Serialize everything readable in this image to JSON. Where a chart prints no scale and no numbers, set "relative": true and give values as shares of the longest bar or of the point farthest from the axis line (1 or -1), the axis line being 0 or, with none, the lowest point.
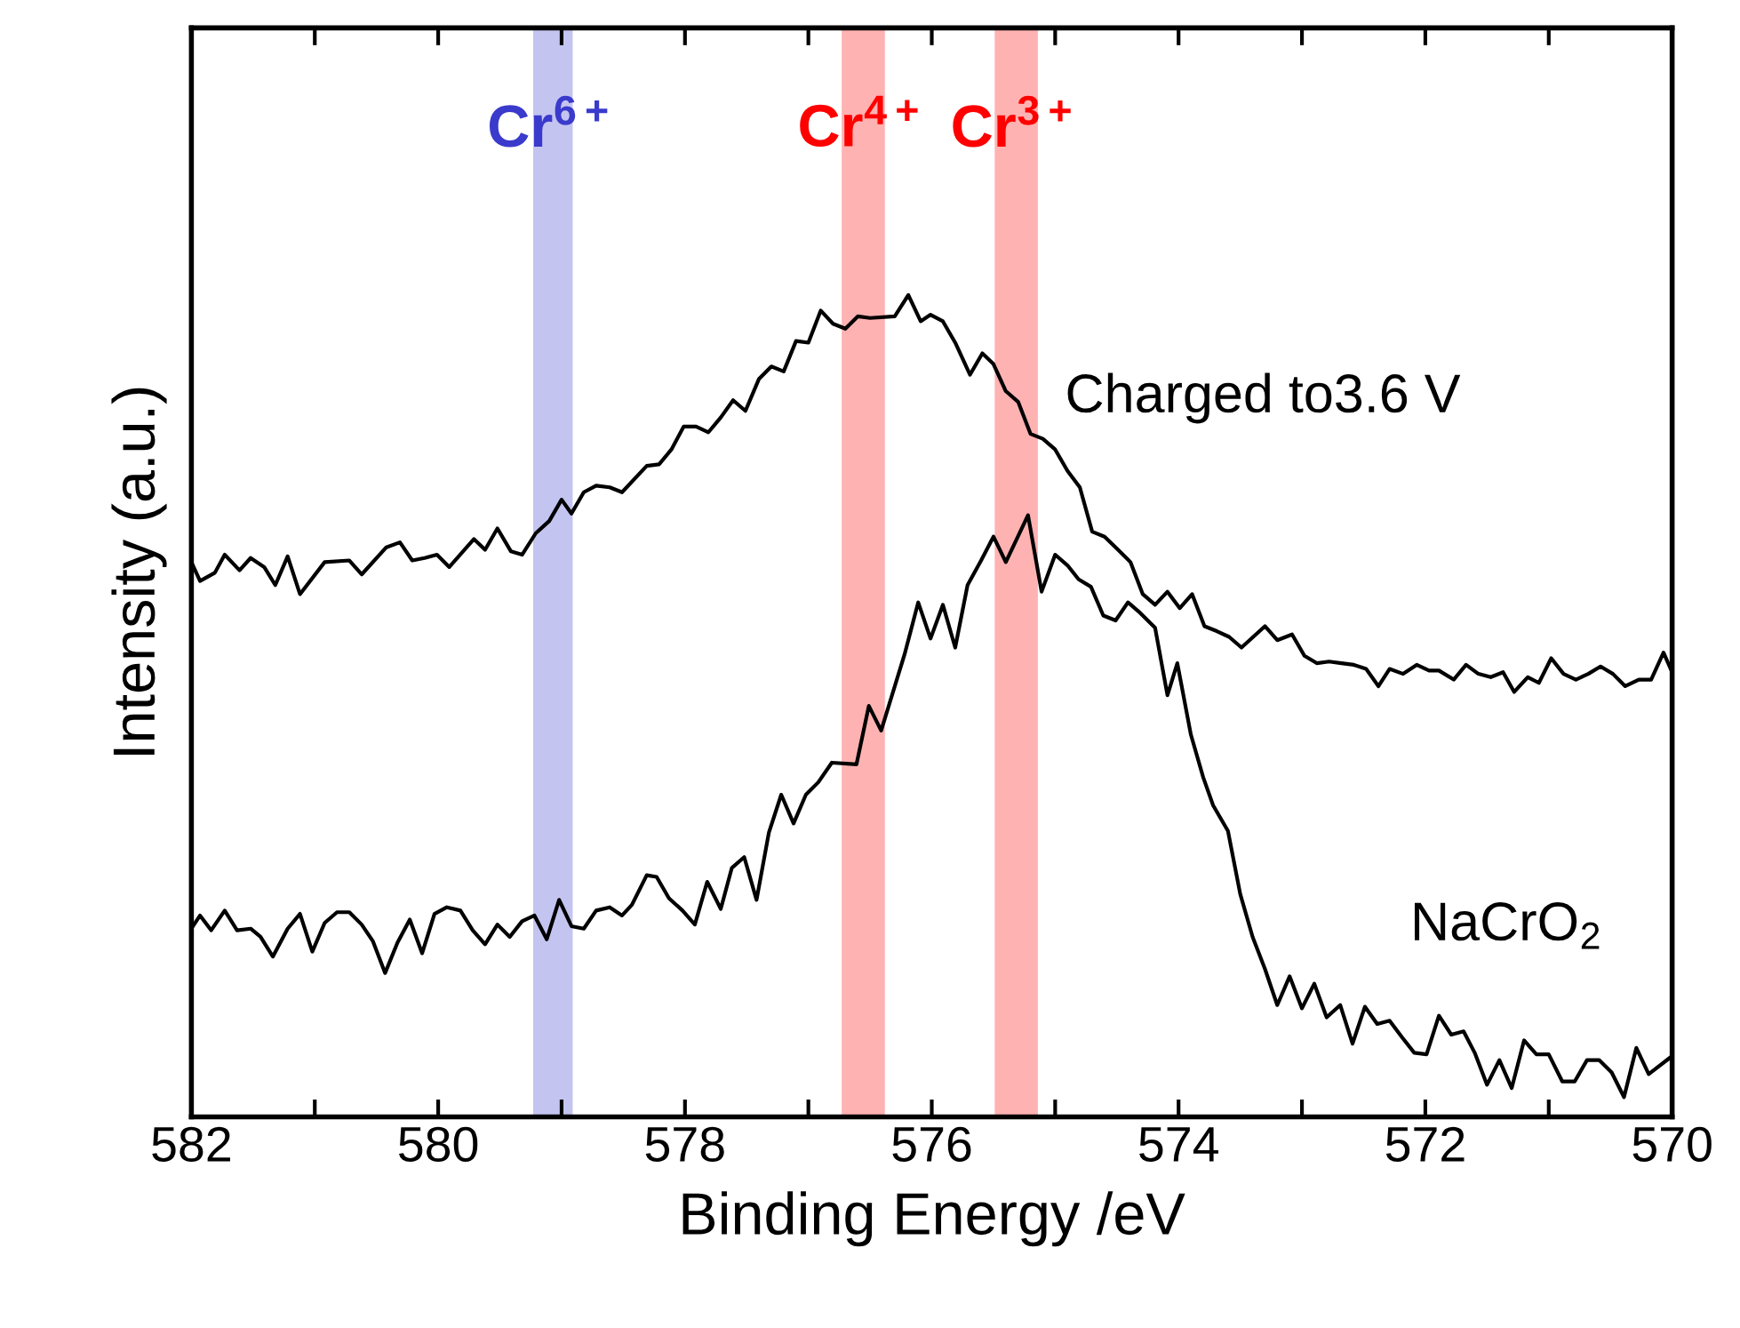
{
  "chart_data": {
    "type": "line",
    "relative": true,
    "xlabel": "Binding Energy /eV",
    "ylabel": "Intensity (a.u.)",
    "xlim": [
      582,
      570
    ],
    "xticks": [
      582,
      {
        "value": 581,
        "label": null
      },
      580,
      {
        "value": 579,
        "label": null
      },
      578,
      {
        "value": 577,
        "label": null
      },
      576,
      {
        "value": 575,
        "label": null
      },
      574,
      {
        "value": 573,
        "label": null
      },
      572,
      {
        "value": 571,
        "label": null
      },
      570
    ],
    "grid": false,
    "legend": false,
    "marker": "none",
    "line_style": "solid",
    "tick_labels": "x",
    "bands": [
      {
        "axis": "x",
        "from": 579.23,
        "to": 578.91,
        "label": "Cr$^{6+}$",
        "color": "#3a3acc"
      },
      {
        "axis": "x",
        "from": 576.73,
        "to": 576.38,
        "label": "Cr$^{4+}$",
        "color": "#ff0000"
      },
      {
        "axis": "x",
        "from": 575.49,
        "to": 575.14,
        "label": "Cr$^{3+}$",
        "color": "#ff0000"
      }
    ],
    "series": [
      {
        "name": "Charged to3.6 V",
        "color": "#000000",
        "x": [
          582.0,
          581.93,
          581.81,
          581.73,
          581.61,
          581.52,
          581.41,
          581.32,
          581.22,
          581.12,
          580.92,
          580.72,
          580.62,
          580.42,
          580.31,
          580.21,
          580.11,
          580.01,
          579.91,
          579.71,
          579.62,
          579.52,
          579.41,
          579.32,
          579.21,
          579.1,
          579.0,
          578.92,
          578.82,
          578.72,
          578.61,
          578.51,
          578.31,
          578.21,
          578.11,
          578.01,
          577.91,
          577.81,
          577.71,
          577.61,
          577.51,
          577.4,
          577.3,
          577.2,
          577.1,
          577.0,
          576.9,
          576.8,
          576.7,
          576.6,
          576.5,
          576.3,
          576.19,
          576.09,
          576.01,
          575.91,
          575.81,
          575.69,
          575.59,
          575.5,
          575.4,
          575.3,
          575.2,
          575.1,
          575.0,
          574.9,
          574.8,
          574.7,
          574.6,
          574.49,
          574.39,
          574.29,
          574.19,
          574.09,
          573.99,
          573.89,
          573.79,
          573.69,
          573.59,
          573.49,
          573.3,
          573.2,
          573.08,
          572.98,
          572.88,
          572.78,
          572.68,
          572.58,
          572.48,
          572.38,
          572.29,
          572.18,
          572.07,
          571.97,
          571.89,
          571.77,
          571.67,
          571.57,
          571.47,
          571.37,
          571.28,
          571.17,
          571.08,
          570.98,
          570.88,
          570.78,
          570.68,
          570.58,
          570.48,
          570.38,
          570.27,
          570.17,
          570.07,
          570.0
        ],
        "values": [
          0.675,
          0.652,
          0.662,
          0.684,
          0.665,
          0.68,
          0.669,
          0.647,
          0.682,
          0.636,
          0.675,
          0.677,
          0.66,
          0.693,
          0.699,
          0.677,
          0.68,
          0.684,
          0.669,
          0.703,
          0.69,
          0.716,
          0.688,
          0.684,
          0.71,
          0.725,
          0.751,
          0.734,
          0.76,
          0.768,
          0.766,
          0.76,
          0.792,
          0.794,
          0.812,
          0.84,
          0.84,
          0.833,
          0.851,
          0.872,
          0.859,
          0.898,
          0.913,
          0.907,
          0.944,
          0.942,
          0.981,
          0.965,
          0.959,
          0.974,
          0.972,
          0.974,
          1.0,
          0.968,
          0.976,
          0.968,
          0.942,
          0.903,
          0.929,
          0.916,
          0.883,
          0.87,
          0.831,
          0.825,
          0.812,
          0.786,
          0.766,
          0.712,
          0.706,
          0.69,
          0.675,
          0.636,
          0.623,
          0.639,
          0.619,
          0.636,
          0.597,
          0.591,
          0.584,
          0.571,
          0.597,
          0.58,
          0.587,
          0.561,
          0.552,
          0.554,
          0.552,
          0.55,
          0.545,
          0.524,
          0.545,
          0.539,
          0.55,
          0.543,
          0.543,
          0.532,
          0.55,
          0.539,
          0.535,
          0.541,
          0.517,
          0.535,
          0.528,
          0.558,
          0.539,
          0.532,
          0.539,
          0.548,
          0.539,
          0.524,
          0.532,
          0.532,
          0.565,
          0.541
        ]
      },
      {
        "name": "NaCrO$_{2}$",
        "color": "#000000",
        "x": [
          582.0,
          581.93,
          581.84,
          581.73,
          581.63,
          581.52,
          581.44,
          581.34,
          581.22,
          581.12,
          581.02,
          580.92,
          580.82,
          580.72,
          580.62,
          580.53,
          580.43,
          580.33,
          580.23,
          580.13,
          580.03,
          579.93,
          579.82,
          579.72,
          579.62,
          579.52,
          579.42,
          579.32,
          579.22,
          579.12,
          579.02,
          578.92,
          578.82,
          578.72,
          578.61,
          578.51,
          578.43,
          578.31,
          578.23,
          578.13,
          578.02,
          577.92,
          577.82,
          577.71,
          577.62,
          577.52,
          577.42,
          577.32,
          577.22,
          577.12,
          577.02,
          576.92,
          576.81,
          576.61,
          576.51,
          576.41,
          576.31,
          576.22,
          576.11,
          576.01,
          575.91,
          575.81,
          575.71,
          575.6,
          575.5,
          575.4,
          575.22,
          575.11,
          575.0,
          574.9,
          574.81,
          574.71,
          574.61,
          574.51,
          574.41,
          574.31,
          574.19,
          574.09,
          574.01,
          573.9,
          573.8,
          573.72,
          573.6,
          573.5,
          573.4,
          573.3,
          573.2,
          573.1,
          573.0,
          572.9,
          572.8,
          572.69,
          572.59,
          572.49,
          572.39,
          572.29,
          572.19,
          572.09,
          571.99,
          571.89,
          571.79,
          571.69,
          571.6,
          571.5,
          571.4,
          571.3,
          571.2,
          571.1,
          571.0,
          570.89,
          570.79,
          570.69,
          570.59,
          570.49,
          570.39,
          570.29,
          570.19,
          570.0
        ],
        "values": [
          0.229,
          0.245,
          0.227,
          0.251,
          0.227,
          0.229,
          0.219,
          0.195,
          0.229,
          0.247,
          0.201,
          0.236,
          0.249,
          0.249,
          0.234,
          0.214,
          0.175,
          0.212,
          0.24,
          0.199,
          0.247,
          0.255,
          0.251,
          0.227,
          0.21,
          0.234,
          0.219,
          0.238,
          0.245,
          0.216,
          0.264,
          0.232,
          0.229,
          0.251,
          0.255,
          0.245,
          0.258,
          0.294,
          0.292,
          0.266,
          0.251,
          0.234,
          0.286,
          0.253,
          0.303,
          0.316,
          0.264,
          0.346,
          0.392,
          0.357,
          0.392,
          0.407,
          0.431,
          0.429,
          0.5,
          0.47,
          0.519,
          0.563,
          0.626,
          0.582,
          0.623,
          0.571,
          0.647,
          0.677,
          0.706,
          0.675,
          0.732,
          0.639,
          0.684,
          0.671,
          0.654,
          0.645,
          0.61,
          0.604,
          0.626,
          0.613,
          0.595,
          0.513,
          0.552,
          0.465,
          0.413,
          0.379,
          0.348,
          0.271,
          0.219,
          0.18,
          0.136,
          0.171,
          0.132,
          0.162,
          0.121,
          0.136,
          0.089,
          0.134,
          0.113,
          0.117,
          0.097,
          0.078,
          0.076,
          0.123,
          0.1,
          0.104,
          0.078,
          0.039,
          0.069,
          0.035,
          0.093,
          0.076,
          0.076,
          0.043,
          0.043,
          0.069,
          0.069,
          0.054,
          0.024,
          0.084,
          0.052,
          0.074
        ]
      }
    ]
  }
}
